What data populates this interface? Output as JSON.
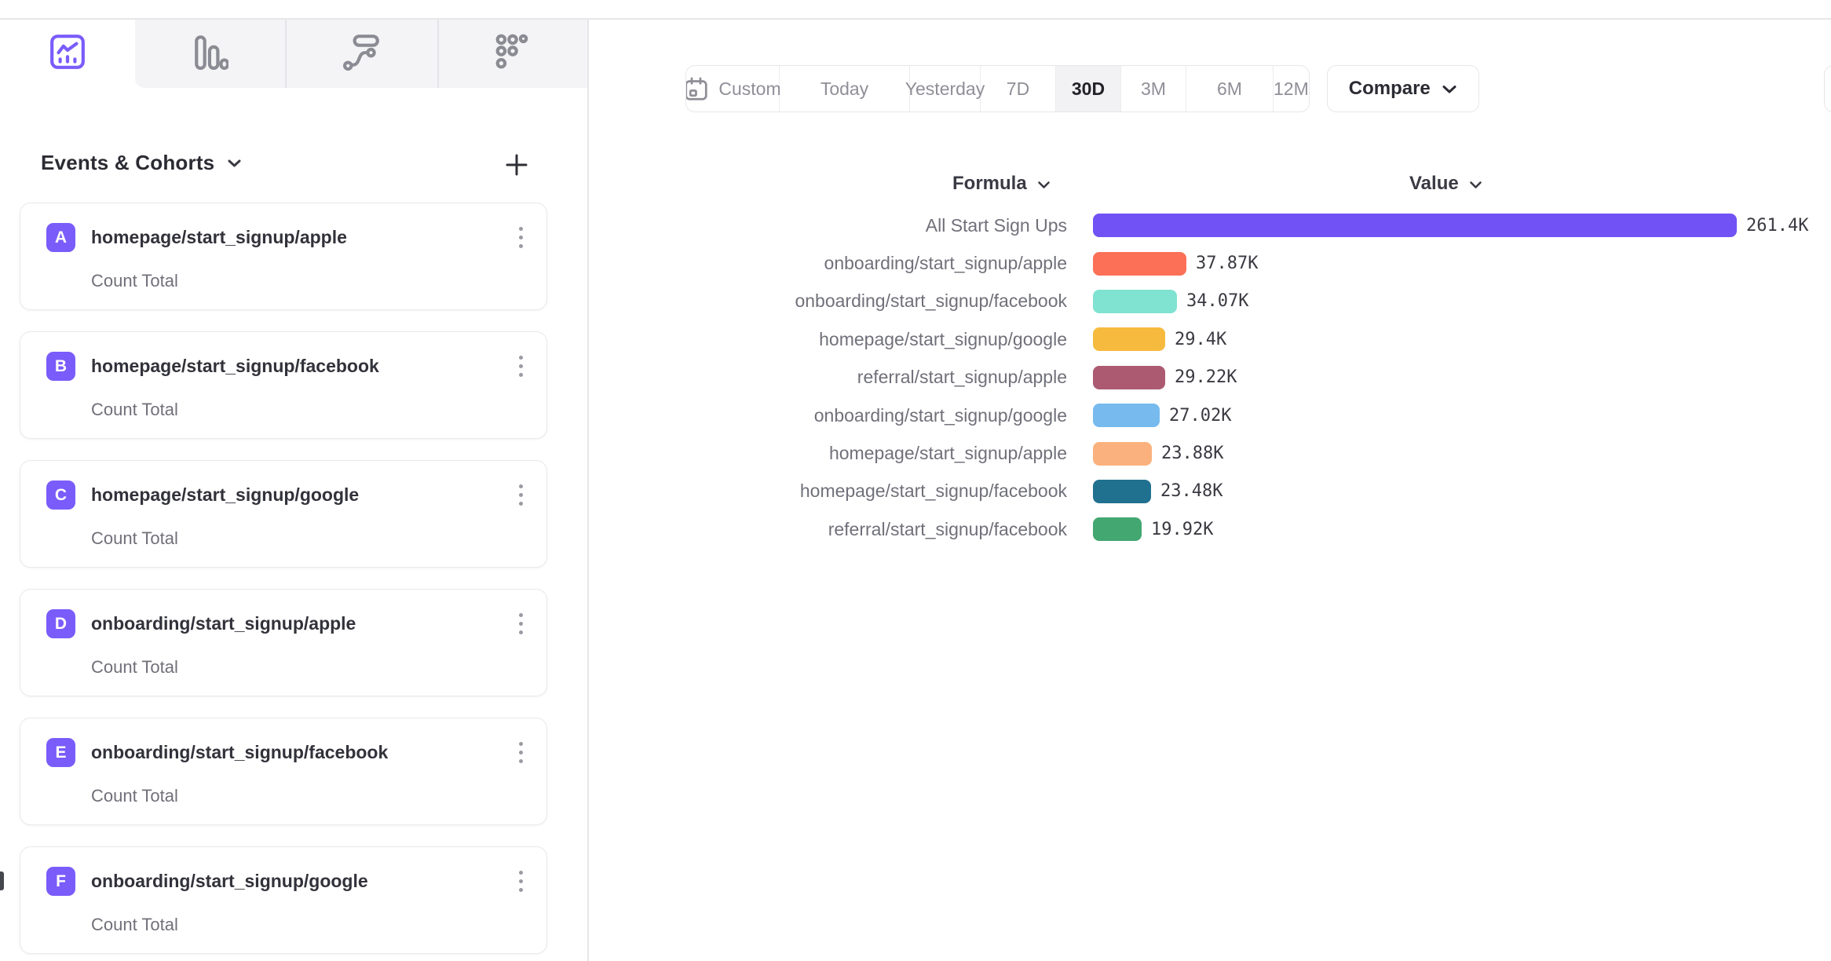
{
  "report_tabs": [
    {
      "id": "insights",
      "icon": "line-chart-icon",
      "active": true
    },
    {
      "id": "funnels",
      "icon": "bar-chart-icon",
      "active": false
    },
    {
      "id": "flows",
      "icon": "flows-icon",
      "active": false
    },
    {
      "id": "retention",
      "icon": "retention-icon",
      "active": false
    }
  ],
  "sidebar": {
    "title": "Events & Cohorts",
    "badge_color": "#7A5CFA",
    "items": [
      {
        "badge": "A",
        "name": "homepage/start_signup/apple",
        "metric": "Count Total"
      },
      {
        "badge": "B",
        "name": "homepage/start_signup/facebook",
        "metric": "Count Total"
      },
      {
        "badge": "C",
        "name": "homepage/start_signup/google",
        "metric": "Count Total"
      },
      {
        "badge": "D",
        "name": "onboarding/start_signup/apple",
        "metric": "Count Total"
      },
      {
        "badge": "E",
        "name": "onboarding/start_signup/facebook",
        "metric": "Count Total"
      },
      {
        "badge": "F",
        "name": "onboarding/start_signup/google",
        "metric": "Count Total"
      }
    ]
  },
  "toolbar": {
    "date_ranges": [
      {
        "label": "Custom",
        "icon": "calendar-icon",
        "active": false
      },
      {
        "label": "Today",
        "active": false
      },
      {
        "label": "Yesterday",
        "active": false
      },
      {
        "label": "7D",
        "active": false
      },
      {
        "label": "30D",
        "active": true
      },
      {
        "label": "3M",
        "active": false
      },
      {
        "label": "6M",
        "active": false
      },
      {
        "label": "12M",
        "active": false
      }
    ],
    "compare_label": "Compare"
  },
  "chart_data": {
    "type": "bar",
    "orientation": "horizontal",
    "grid": "off",
    "legend": "none",
    "column_headers": [
      {
        "label": "Formula"
      },
      {
        "label": "Value"
      }
    ],
    "max_value": 261400,
    "rows": [
      {
        "label": "All Start Sign Ups",
        "value": 261400,
        "value_display": "261.4K",
        "color": "#7152F4"
      },
      {
        "label": "onboarding/start_signup/apple",
        "value": 37870,
        "value_display": "37.87K",
        "color": "#FB7056"
      },
      {
        "label": "onboarding/start_signup/facebook",
        "value": 34070,
        "value_display": "34.07K",
        "color": "#80E2D1"
      },
      {
        "label": "homepage/start_signup/google",
        "value": 29400,
        "value_display": "29.4K",
        "color": "#F6BB3E"
      },
      {
        "label": "referral/start_signup/apple",
        "value": 29220,
        "value_display": "29.22K",
        "color": "#AC5A72"
      },
      {
        "label": "onboarding/start_signup/google",
        "value": 27020,
        "value_display": "27.02K",
        "color": "#76BAEE"
      },
      {
        "label": "homepage/start_signup/apple",
        "value": 23880,
        "value_display": "23.88K",
        "color": "#FBB17D"
      },
      {
        "label": "homepage/start_signup/facebook",
        "value": 23480,
        "value_display": "23.48K",
        "color": "#20718F"
      },
      {
        "label": "referral/start_signup/facebook",
        "value": 19920,
        "value_display": "19.92K",
        "color": "#43A771"
      }
    ]
  }
}
